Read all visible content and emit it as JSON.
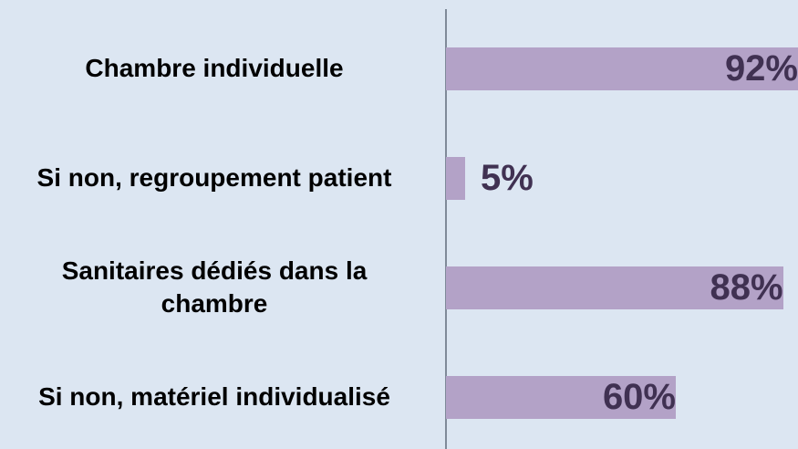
{
  "chart_data": {
    "type": "hbar",
    "categories": [
      "Chambre individuelle",
      "Si non, regroupement patient",
      "Sanitaires dédiés dans la chambre",
      "Si non, matériel individualisé"
    ],
    "values": [
      92,
      5,
      88,
      60
    ],
    "value_labels": [
      "92%",
      "5%",
      "88%",
      "60%"
    ],
    "color": "#b3a2c7",
    "xlim": [
      0,
      100
    ]
  }
}
